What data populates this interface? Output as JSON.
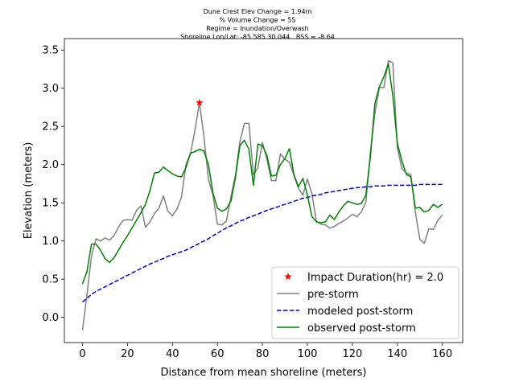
{
  "chart_data": {
    "type": "line",
    "title_lines": [
      "Dune Crest Elev Change = 1.94m",
      "% Volume Change = 55",
      "Regime = Inundation/Overwash",
      "Shoreline Lon/Lat: -85.585 30.044   BSS = -8.64"
    ],
    "x_label": "Distance from mean shoreline (meters)",
    "y_label": "Elevation (meters)",
    "xlim": [
      -8.05,
      169.05
    ],
    "ylim": [
      -0.33,
      3.65
    ],
    "xticks": [
      0,
      20,
      40,
      60,
      80,
      100,
      120,
      140,
      160
    ],
    "yticks": [
      {
        "value": 0,
        "label": "0.0"
      },
      0.5,
      {
        "value": 1,
        "label": "1.0"
      },
      1.5,
      {
        "value": 2,
        "label": "2.0"
      },
      2.5,
      {
        "value": 3,
        "label": "3.0"
      },
      3.5
    ],
    "legend": "lower right",
    "x": [
      0,
      2,
      4,
      6,
      8,
      10,
      12,
      14,
      16,
      18,
      20,
      22,
      24,
      26,
      28,
      30,
      32,
      34,
      36,
      38,
      40,
      42,
      44,
      46,
      48,
      50,
      52,
      54,
      56,
      58,
      60,
      62,
      64,
      66,
      68,
      70,
      72,
      74,
      76,
      78,
      80,
      82,
      84,
      86,
      88,
      90,
      92,
      94,
      96,
      98,
      100,
      102,
      104,
      106,
      108,
      110,
      112,
      114,
      116,
      118,
      120,
      122,
      124,
      126,
      128,
      130,
      132,
      134,
      136,
      138,
      140,
      142,
      144,
      146,
      148,
      150,
      152,
      154,
      156,
      158,
      160
    ],
    "series": [
      {
        "name": "Impact Duration(hr) = 2.0",
        "color": "#ff0000",
        "marker": "star",
        "x": [
          52
        ],
        "values": [
          2.81
        ]
      },
      {
        "name": "pre-storm",
        "color": "#808080",
        "line_style": "solid",
        "values": [
          -0.17,
          0.3,
          0.8,
          1.03,
          1.0,
          1.04,
          1.01,
          1.07,
          1.18,
          1.27,
          1.28,
          1.27,
          1.4,
          1.46,
          1.18,
          1.25,
          1.36,
          1.43,
          1.59,
          1.39,
          1.33,
          1.42,
          1.57,
          2.0,
          2.14,
          2.45,
          2.81,
          2.37,
          1.81,
          1.6,
          1.22,
          1.21,
          1.26,
          1.58,
          1.86,
          2.3,
          2.54,
          2.54,
          1.87,
          1.96,
          2.29,
          2.07,
          1.79,
          1.79,
          2.14,
          2.07,
          2.03,
          1.86,
          1.69,
          1.6,
          1.81,
          1.62,
          1.26,
          1.22,
          1.21,
          1.17,
          1.19,
          1.23,
          1.26,
          1.3,
          1.35,
          1.32,
          1.38,
          1.51,
          2.16,
          2.67,
          3.01,
          3.01,
          3.36,
          3.33,
          2.22,
          1.95,
          1.89,
          1.87,
          1.38,
          1.02,
          0.97,
          1.16,
          1.15,
          1.27,
          1.34
        ]
      },
      {
        "name": "modeled post-storm",
        "color": "#0000dd",
        "line_style": "dashed",
        "values": [
          0.2,
          0.25,
          0.3,
          0.34,
          0.37,
          0.4,
          0.43,
          0.46,
          0.49,
          0.52,
          0.55,
          0.58,
          0.61,
          0.64,
          0.67,
          0.7,
          0.72,
          0.75,
          0.77,
          0.8,
          0.82,
          0.84,
          0.86,
          0.88,
          0.91,
          0.94,
          0.97,
          1.0,
          1.03,
          1.07,
          1.1,
          1.14,
          1.17,
          1.2,
          1.23,
          1.26,
          1.28,
          1.31,
          1.33,
          1.35,
          1.38,
          1.4,
          1.42,
          1.44,
          1.46,
          1.48,
          1.5,
          1.52,
          1.54,
          1.56,
          1.57,
          1.59,
          1.6,
          1.61,
          1.63,
          1.64,
          1.65,
          1.66,
          1.67,
          1.68,
          1.69,
          1.7,
          1.7,
          1.71,
          1.71,
          1.72,
          1.72,
          1.72,
          1.73,
          1.73,
          1.73,
          1.73,
          1.73,
          1.73,
          1.73,
          1.74,
          1.74,
          1.74,
          1.74,
          1.74,
          1.74
        ]
      },
      {
        "name": "observed post-storm",
        "color": "#008000",
        "line_style": "solid",
        "values": [
          0.44,
          0.6,
          0.96,
          0.96,
          0.88,
          0.77,
          0.72,
          0.78,
          0.88,
          0.98,
          1.07,
          1.17,
          1.27,
          1.37,
          1.48,
          1.66,
          1.89,
          1.9,
          1.97,
          1.92,
          1.88,
          1.85,
          1.84,
          1.96,
          2.15,
          2.17,
          2.2,
          2.18,
          2.0,
          1.63,
          1.43,
          1.39,
          1.42,
          1.52,
          1.83,
          2.25,
          2.32,
          2.2,
          1.73,
          2.27,
          2.25,
          2.12,
          1.85,
          1.86,
          2.0,
          2.08,
          2.21,
          1.87,
          1.71,
          1.82,
          1.6,
          1.32,
          1.25,
          1.24,
          1.25,
          1.34,
          1.28,
          1.38,
          1.46,
          1.52,
          1.5,
          1.48,
          1.49,
          1.6,
          2.1,
          2.8,
          3.02,
          3.15,
          3.32,
          2.9,
          2.28,
          2.05,
          1.87,
          1.84,
          1.43,
          1.44,
          1.38,
          1.4,
          1.48,
          1.44,
          1.48
        ]
      }
    ]
  }
}
